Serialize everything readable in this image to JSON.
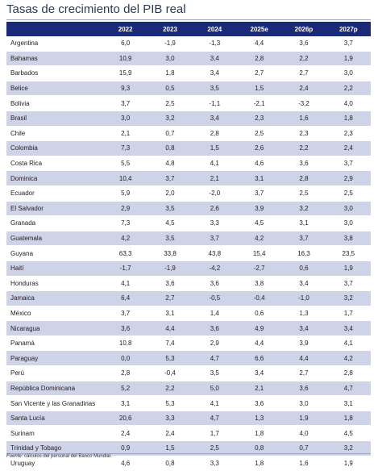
{
  "title": "Tasas de crecimiento del PIB real",
  "headers": [
    "",
    "2022",
    "2023",
    "2024",
    "2025e",
    "2026p",
    "2027p"
  ],
  "rows": [
    [
      "Argentina",
      "6,0",
      "-1,9",
      "-1,3",
      "4,4",
      "3,6",
      "3,7"
    ],
    [
      "Bahamas",
      "10,9",
      "3,0",
      "3,4",
      "2,8",
      "2,2",
      "1,9"
    ],
    [
      "Barbados",
      "15,9",
      "1,8",
      "3,4",
      "2,7",
      "2,7",
      "3,0"
    ],
    [
      "Belice",
      "9,3",
      "0,5",
      "3,5",
      "1,5",
      "2,4",
      "2,2"
    ],
    [
      "Bolivia",
      "3,7",
      "2,5",
      "-1,1",
      "-2,1",
      "-3,2",
      "4,0"
    ],
    [
      "Brasil",
      "3,0",
      "3,2",
      "3,4",
      "2,3",
      "1,6",
      "1,8"
    ],
    [
      "Chile",
      "2,1",
      "0,7",
      "2,8",
      "2,5",
      "2,3",
      "2,3"
    ],
    [
      "Colombia",
      "7,3",
      "0,8",
      "1,5",
      "2,6",
      "2,2",
      "2,4"
    ],
    [
      "Costa Rica",
      "5,5",
      "4,8",
      "4,1",
      "4,6",
      "3,6",
      "3,7"
    ],
    [
      "Dominica",
      "10,4",
      "3,7",
      "2,1",
      "3,1",
      "2,8",
      "2,9"
    ],
    [
      "Ecuador",
      "5,9",
      "2,0",
      "-2,0",
      "3,7",
      "2,5",
      "2,5"
    ],
    [
      "El Salvador",
      "2,9",
      "3,5",
      "2,6",
      "3,9",
      "3,2",
      "3,0"
    ],
    [
      "Granada",
      "7,3",
      "4,5",
      "3,3",
      "4,5",
      "3,1",
      "3,0"
    ],
    [
      "Guatemala",
      "4,2",
      "3,5",
      "3,7",
      "4,2",
      "3,7",
      "3,8"
    ],
    [
      "Guyana",
      "63,3",
      "33,8",
      "43,8",
      "15,4",
      "16,3",
      "23,5"
    ],
    [
      "Haití",
      "-1,7",
      "-1,9",
      "-4,2",
      "-2,7",
      "0,6",
      "1,9"
    ],
    [
      "Honduras",
      "4,1",
      "3,6",
      "3,6",
      "3,8",
      "3,4",
      "3,7"
    ],
    [
      "Jamaica",
      "6,4",
      "2,7",
      "-0,5",
      "-0,4",
      "-1,0",
      "3,2"
    ],
    [
      "México",
      "3,7",
      "3,1",
      "1,4",
      "0,6",
      "1,3",
      "1,7"
    ],
    [
      "Nicaragua",
      "3,6",
      "4,4",
      "3,6",
      "4,9",
      "3,4",
      "3,4"
    ],
    [
      "Panamá",
      "10,8",
      "7,4",
      "2,9",
      "4,4",
      "3,9",
      "4,1"
    ],
    [
      "Paraguay",
      "0,0",
      "5,3",
      "4,7",
      "6,6",
      "4,4",
      "4,2"
    ],
    [
      "Perú",
      "2,8",
      "-0,4",
      "3,5",
      "3,4",
      "2,7",
      "2,8"
    ],
    [
      "República Dominicana",
      "5,2",
      "2,2",
      "5,0",
      "2,1",
      "3,6",
      "4,7"
    ],
    [
      "San Vicente y las Granadinas",
      "3,1",
      "5,3",
      "4,1",
      "3,6",
      "3,0",
      "3,1"
    ],
    [
      "Santa Lucía",
      "20,6",
      "3,3",
      "4,7",
      "1,3",
      "1,9",
      "1,8"
    ],
    [
      "Surinam",
      "2,4",
      "2,4",
      "1,7",
      "1,8",
      "4,0",
      "4,5"
    ],
    [
      "Trinidad y Tobago",
      "0,9",
      "1,5",
      "2,5",
      "0,8",
      "0,7",
      "3,2"
    ],
    [
      "Uruguay",
      "4,6",
      "0,8",
      "3,3",
      "1,8",
      "1,6",
      "1,9"
    ]
  ],
  "source": {
    "label": "Fuente:",
    "text": "cálculos del personal del Banco Mundial."
  }
}
